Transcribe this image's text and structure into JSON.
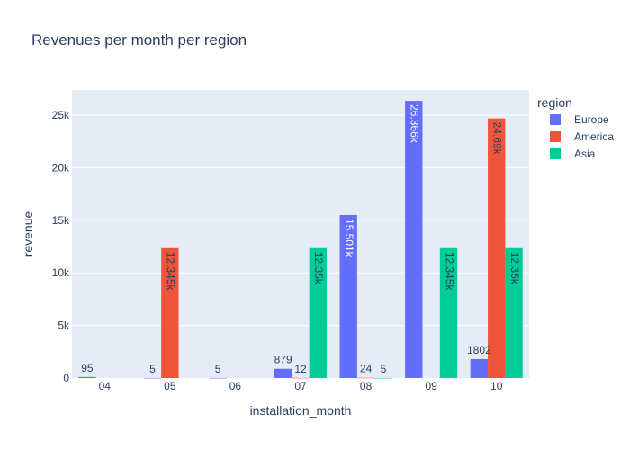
{
  "chart_data": {
    "type": "bar",
    "title": "Revenues per month per region",
    "xlabel": "installation_month",
    "ylabel": "revenue",
    "categories": [
      "04",
      "05",
      "06",
      "07",
      "08",
      "09",
      "10"
    ],
    "ylim": [
      0,
      27400
    ],
    "yticks": [
      0,
      5000,
      10000,
      15000,
      20000,
      25000
    ],
    "ytick_labels": [
      "0",
      "5k",
      "10k",
      "15k",
      "20k",
      "25k"
    ],
    "legend_title": "region",
    "legend_position": "top-right",
    "grid": true,
    "series": [
      {
        "name": "Europe",
        "color": "#636efa",
        "values": [
          95,
          5,
          5,
          879,
          15501,
          26366,
          1802
        ],
        "labels": [
          "95",
          "5",
          "5",
          "879",
          "15.501k",
          "26.366k",
          "1802"
        ]
      },
      {
        "name": "America",
        "color": "#EF553B",
        "values": [
          null,
          12345,
          null,
          12,
          24,
          null,
          24690
        ],
        "labels": [
          "",
          "12.345k",
          "",
          "12",
          "24",
          "",
          "24.69k"
        ]
      },
      {
        "name": "Asia",
        "color": "#00cc96",
        "values": [
          null,
          null,
          null,
          12350,
          5,
          12345,
          12350
        ],
        "labels": [
          "",
          "",
          "",
          "12.35k",
          "5",
          "12.345k",
          "12.35k"
        ]
      }
    ]
  }
}
